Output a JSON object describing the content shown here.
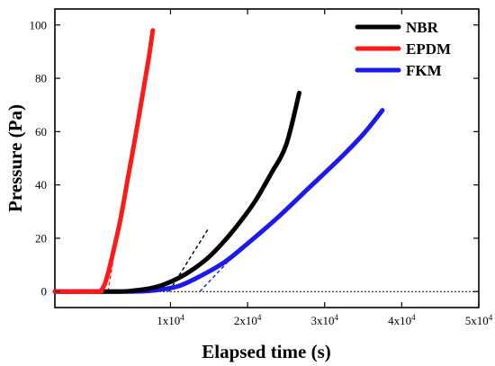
{
  "chart_data": {
    "type": "line",
    "xlabel": "Elapsed time (s)",
    "ylabel": "Pressure (Pa)",
    "xlim": [
      -5000,
      50000
    ],
    "ylim": [
      -6,
      106
    ],
    "x_ticks": [
      10000,
      20000,
      30000,
      40000,
      50000
    ],
    "x_tick_labels": [
      {
        "mant": "1x10",
        "exp": "4"
      },
      {
        "mant": "2x10",
        "exp": "4"
      },
      {
        "mant": "3x10",
        "exp": "4"
      },
      {
        "mant": "4x10",
        "exp": "4"
      },
      {
        "mant": "5x10",
        "exp": "4"
      }
    ],
    "y_ticks": [
      0,
      20,
      40,
      60,
      80,
      100
    ],
    "y_tick_labels": [
      "0",
      "20",
      "40",
      "60",
      "80",
      "100"
    ],
    "legend_position": "top-right",
    "baseline": {
      "y": 0,
      "style": "dotted",
      "color": "#000000"
    },
    "series": [
      {
        "name": "NBR",
        "color": "#000000",
        "points": [
          [
            -5000,
            0
          ],
          [
            3000,
            0
          ],
          [
            5000,
            0.3
          ],
          [
            7000,
            1
          ],
          [
            9000,
            2.5
          ],
          [
            11000,
            5
          ],
          [
            13000,
            8.5
          ],
          [
            15000,
            13
          ],
          [
            17000,
            19
          ],
          [
            19000,
            26
          ],
          [
            21000,
            34
          ],
          [
            23000,
            44
          ],
          [
            25000,
            55
          ],
          [
            26700,
            74.5
          ]
        ],
        "tangent": [
          [
            9800,
            0
          ],
          [
            15000,
            24
          ]
        ]
      },
      {
        "name": "EPDM",
        "color": "#ff1a1a",
        "points": [
          [
            -5000,
            0
          ],
          [
            500,
            0
          ],
          [
            1000,
            0.5
          ],
          [
            1500,
            3
          ],
          [
            2000,
            8
          ],
          [
            2500,
            14
          ],
          [
            3500,
            27
          ],
          [
            4500,
            43
          ],
          [
            5500,
            59
          ],
          [
            6500,
            76
          ],
          [
            7200,
            88
          ],
          [
            7700,
            98
          ]
        ],
        "tangent": [
          [
            1900,
            0
          ],
          [
            3000,
            20
          ]
        ]
      },
      {
        "name": "FKM",
        "color": "#1a1aee",
        "points": [
          [
            -5000,
            0
          ],
          [
            5000,
            0
          ],
          [
            8000,
            0.5
          ],
          [
            11000,
            2
          ],
          [
            14000,
            6
          ],
          [
            17000,
            11
          ],
          [
            20000,
            18
          ],
          [
            24000,
            28
          ],
          [
            28000,
            39
          ],
          [
            32000,
            50
          ],
          [
            35000,
            59
          ],
          [
            37500,
            68
          ]
        ],
        "tangent": [
          [
            13800,
            0
          ],
          [
            20000,
            19
          ]
        ]
      }
    ]
  }
}
